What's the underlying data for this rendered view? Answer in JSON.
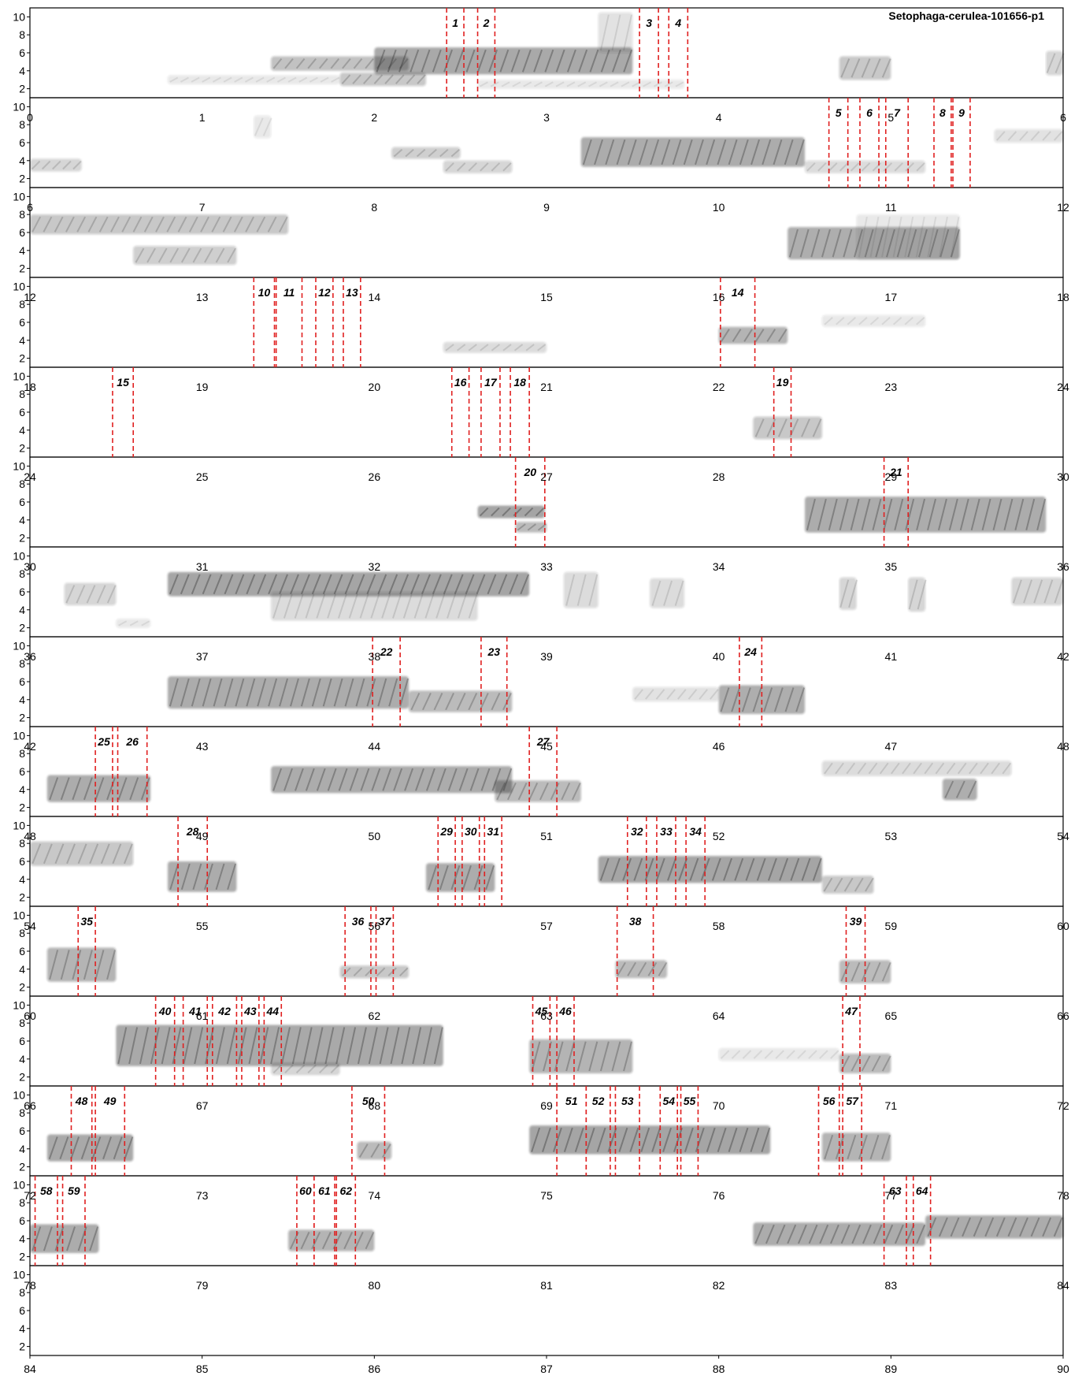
{
  "chart_data": {
    "type": "spectrogram",
    "title": "Setophaga-cerulea-101656-p1",
    "rows": 15,
    "seconds_per_row": 6,
    "x_range": [
      0,
      90
    ],
    "y_range": [
      1,
      11
    ],
    "yticks": [
      2,
      4,
      6,
      8,
      10
    ],
    "colors": {
      "ink": "#222222",
      "segment": "#e02020",
      "frame": "#000000"
    },
    "segments": [
      {
        "label": "1",
        "start": 2.42,
        "end": 2.52
      },
      {
        "label": "2",
        "start": 2.6,
        "end": 2.7
      },
      {
        "label": "3",
        "start": 3.54,
        "end": 3.65
      },
      {
        "label": "4",
        "start": 3.71,
        "end": 3.82
      },
      {
        "label": "5",
        "start": 10.64,
        "end": 10.75
      },
      {
        "label": "6",
        "start": 10.82,
        "end": 10.93
      },
      {
        "label": "7",
        "start": 10.97,
        "end": 11.1
      },
      {
        "label": "8",
        "start": 11.25,
        "end": 11.35
      },
      {
        "label": "9",
        "start": 11.36,
        "end": 11.46
      },
      {
        "label": "10",
        "start": 19.3,
        "end": 19.42
      },
      {
        "label": "11",
        "start": 19.43,
        "end": 19.58
      },
      {
        "label": "12",
        "start": 19.66,
        "end": 19.76
      },
      {
        "label": "13",
        "start": 19.82,
        "end": 19.92
      },
      {
        "label": "14",
        "start": 22.01,
        "end": 22.21
      },
      {
        "label": "15",
        "start": 24.48,
        "end": 24.6
      },
      {
        "label": "16",
        "start": 26.45,
        "end": 26.55
      },
      {
        "label": "17",
        "start": 26.62,
        "end": 26.73
      },
      {
        "label": "18",
        "start": 26.79,
        "end": 26.9
      },
      {
        "label": "19",
        "start": 28.32,
        "end": 28.42
      },
      {
        "label": "20",
        "start": 32.82,
        "end": 32.99
      },
      {
        "label": "21",
        "start": 34.96,
        "end": 35.1
      },
      {
        "label": "22",
        "start": 43.99,
        "end": 44.15
      },
      {
        "label": "23",
        "start": 44.62,
        "end": 44.77
      },
      {
        "label": "24",
        "start": 46.12,
        "end": 46.25
      },
      {
        "label": "25",
        "start": 48.38,
        "end": 48.48
      },
      {
        "label": "26",
        "start": 48.51,
        "end": 48.68
      },
      {
        "label": "27",
        "start": 50.9,
        "end": 51.06
      },
      {
        "label": "28",
        "start": 54.86,
        "end": 55.03
      },
      {
        "label": "29",
        "start": 56.37,
        "end": 56.47
      },
      {
        "label": "30",
        "start": 56.51,
        "end": 56.61
      },
      {
        "label": "31",
        "start": 56.64,
        "end": 56.74
      },
      {
        "label": "32",
        "start": 57.47,
        "end": 57.58
      },
      {
        "label": "33",
        "start": 57.64,
        "end": 57.75
      },
      {
        "label": "34",
        "start": 57.81,
        "end": 57.92
      },
      {
        "label": "35",
        "start": 60.28,
        "end": 60.38
      },
      {
        "label": "36",
        "start": 61.83,
        "end": 61.98
      },
      {
        "label": "37",
        "start": 62.01,
        "end": 62.11
      },
      {
        "label": "38",
        "start": 63.41,
        "end": 63.62
      },
      {
        "label": "39",
        "start": 64.74,
        "end": 64.85
      },
      {
        "label": "40",
        "start": 66.73,
        "end": 66.84
      },
      {
        "label": "41",
        "start": 66.89,
        "end": 67.03
      },
      {
        "label": "42",
        "start": 67.06,
        "end": 67.2
      },
      {
        "label": "43",
        "start": 67.23,
        "end": 67.33
      },
      {
        "label": "44",
        "start": 67.36,
        "end": 67.46
      },
      {
        "label": "45",
        "start": 68.92,
        "end": 69.02
      },
      {
        "label": "46",
        "start": 69.06,
        "end": 69.16
      },
      {
        "label": "47",
        "start": 70.72,
        "end": 70.82
      },
      {
        "label": "48",
        "start": 72.24,
        "end": 72.36
      },
      {
        "label": "49",
        "start": 72.38,
        "end": 72.55
      },
      {
        "label": "50",
        "start": 73.87,
        "end": 74.06
      },
      {
        "label": "51",
        "start": 75.06,
        "end": 75.23
      },
      {
        "label": "52",
        "start": 75.23,
        "end": 75.37
      },
      {
        "label": "53",
        "start": 75.4,
        "end": 75.54
      },
      {
        "label": "54",
        "start": 75.66,
        "end": 75.76
      },
      {
        "label": "55",
        "start": 75.78,
        "end": 75.88
      },
      {
        "label": "56",
        "start": 76.58,
        "end": 76.7
      },
      {
        "label": "57",
        "start": 76.72,
        "end": 76.83
      },
      {
        "label": "58",
        "start": 78.03,
        "end": 78.16
      },
      {
        "label": "59",
        "start": 78.19,
        "end": 78.32
      },
      {
        "label": "60",
        "start": 79.55,
        "end": 79.65
      },
      {
        "label": "61",
        "start": 79.65,
        "end": 79.77
      },
      {
        "label": "62",
        "start": 79.78,
        "end": 79.89
      },
      {
        "label": "63",
        "start": 82.96,
        "end": 83.09
      },
      {
        "label": "64",
        "start": 83.13,
        "end": 83.23
      }
    ],
    "blobs": [
      {
        "start": 0.8,
        "end": 1.8,
        "fmin": 2.5,
        "fmax": 3.5,
        "d": 0.2
      },
      {
        "start": 1.4,
        "end": 2.2,
        "fmin": 4.0,
        "fmax": 5.6,
        "d": 0.5
      },
      {
        "start": 1.8,
        "end": 2.3,
        "fmin": 2.3,
        "fmax": 3.8,
        "d": 0.45
      },
      {
        "start": 2.0,
        "end": 3.5,
        "fmin": 3.6,
        "fmax": 6.6,
        "d": 0.72
      },
      {
        "start": 3.3,
        "end": 3.5,
        "fmin": 6.0,
        "fmax": 10.5,
        "d": 0.25
      },
      {
        "start": 2.6,
        "end": 3.8,
        "fmin": 2.0,
        "fmax": 3.0,
        "d": 0.2
      },
      {
        "start": 4.7,
        "end": 5.0,
        "fmin": 3.0,
        "fmax": 5.6,
        "d": 0.45
      },
      {
        "start": 5.9,
        "end": 6.0,
        "fmin": 3.5,
        "fmax": 6.2,
        "d": 0.35
      },
      {
        "start": 6.0,
        "end": 6.3,
        "fmin": 2.8,
        "fmax": 4.2,
        "d": 0.35
      },
      {
        "start": 7.3,
        "end": 7.4,
        "fmin": 6.5,
        "fmax": 9.0,
        "d": 0.2
      },
      {
        "start": 8.1,
        "end": 8.5,
        "fmin": 4.2,
        "fmax": 5.5,
        "d": 0.4
      },
      {
        "start": 8.4,
        "end": 8.8,
        "fmin": 2.6,
        "fmax": 4.0,
        "d": 0.35
      },
      {
        "start": 9.2,
        "end": 10.5,
        "fmin": 3.3,
        "fmax": 6.6,
        "d": 0.7
      },
      {
        "start": 10.5,
        "end": 11.2,
        "fmin": 2.6,
        "fmax": 4.0,
        "d": 0.3
      },
      {
        "start": 11.6,
        "end": 12.0,
        "fmin": 6.0,
        "fmax": 7.5,
        "d": 0.25
      },
      {
        "start": 12.0,
        "end": 13.5,
        "fmin": 5.8,
        "fmax": 8.0,
        "d": 0.45
      },
      {
        "start": 12.6,
        "end": 13.2,
        "fmin": 2.4,
        "fmax": 4.5,
        "d": 0.4
      },
      {
        "start": 16.4,
        "end": 17.4,
        "fmin": 3.0,
        "fmax": 6.6,
        "d": 0.65
      },
      {
        "start": 16.8,
        "end": 17.4,
        "fmin": 3.0,
        "fmax": 8.0,
        "d": 0.2
      },
      {
        "start": 20.4,
        "end": 21.0,
        "fmin": 2.6,
        "fmax": 3.8,
        "d": 0.3
      },
      {
        "start": 22.0,
        "end": 22.4,
        "fmin": 3.6,
        "fmax": 5.5,
        "d": 0.6
      },
      {
        "start": 22.6,
        "end": 23.2,
        "fmin": 5.5,
        "fmax": 6.8,
        "d": 0.2
      },
      {
        "start": 28.2,
        "end": 28.6,
        "fmin": 3.0,
        "fmax": 5.5,
        "d": 0.45
      },
      {
        "start": 32.6,
        "end": 32.99,
        "fmin": 4.2,
        "fmax": 5.6,
        "d": 0.75
      },
      {
        "start": 32.82,
        "end": 33.0,
        "fmin": 2.6,
        "fmax": 3.8,
        "d": 0.55
      },
      {
        "start": 34.5,
        "end": 35.9,
        "fmin": 2.6,
        "fmax": 6.6,
        "d": 0.7
      },
      {
        "start": 36.2,
        "end": 36.5,
        "fmin": 4.5,
        "fmax": 7.0,
        "d": 0.35
      },
      {
        "start": 36.5,
        "end": 36.7,
        "fmin": 2.0,
        "fmax": 3.0,
        "d": 0.2
      },
      {
        "start": 36.8,
        "end": 38.9,
        "fmin": 5.5,
        "fmax": 8.2,
        "d": 0.75
      },
      {
        "start": 37.4,
        "end": 38.6,
        "fmin": 2.8,
        "fmax": 6.0,
        "d": 0.3
      },
      {
        "start": 39.1,
        "end": 39.3,
        "fmin": 4.2,
        "fmax": 8.2,
        "d": 0.3
      },
      {
        "start": 39.6,
        "end": 39.8,
        "fmin": 4.2,
        "fmax": 7.5,
        "d": 0.3
      },
      {
        "start": 40.7,
        "end": 40.8,
        "fmin": 4.0,
        "fmax": 7.6,
        "d": 0.35
      },
      {
        "start": 41.1,
        "end": 41.2,
        "fmin": 3.8,
        "fmax": 7.6,
        "d": 0.35
      },
      {
        "start": 41.7,
        "end": 42.0,
        "fmin": 4.5,
        "fmax": 7.6,
        "d": 0.35
      },
      {
        "start": 42.8,
        "end": 44.2,
        "fmin": 3.0,
        "fmax": 6.6,
        "d": 0.7
      },
      {
        "start": 44.2,
        "end": 44.8,
        "fmin": 2.6,
        "fmax": 5.0,
        "d": 0.55
      },
      {
        "start": 45.5,
        "end": 46.0,
        "fmin": 3.8,
        "fmax": 5.4,
        "d": 0.25
      },
      {
        "start": 46.0,
        "end": 46.5,
        "fmin": 2.4,
        "fmax": 5.6,
        "d": 0.65
      },
      {
        "start": 48.1,
        "end": 48.7,
        "fmin": 2.6,
        "fmax": 5.6,
        "d": 0.7
      },
      {
        "start": 49.4,
        "end": 50.8,
        "fmin": 3.6,
        "fmax": 6.6,
        "d": 0.7
      },
      {
        "start": 50.7,
        "end": 51.2,
        "fmin": 2.6,
        "fmax": 5.0,
        "d": 0.55
      },
      {
        "start": 52.6,
        "end": 53.7,
        "fmin": 5.5,
        "fmax": 7.2,
        "d": 0.3
      },
      {
        "start": 53.3,
        "end": 53.5,
        "fmin": 2.8,
        "fmax": 5.2,
        "d": 0.65
      },
      {
        "start": 54.0,
        "end": 54.6,
        "fmin": 5.5,
        "fmax": 8.2,
        "d": 0.45
      },
      {
        "start": 54.8,
        "end": 55.2,
        "fmin": 2.6,
        "fmax": 6.0,
        "d": 0.7
      },
      {
        "start": 56.3,
        "end": 56.7,
        "fmin": 2.6,
        "fmax": 5.8,
        "d": 0.7
      },
      {
        "start": 57.3,
        "end": 58.6,
        "fmin": 3.6,
        "fmax": 6.6,
        "d": 0.75
      },
      {
        "start": 58.6,
        "end": 58.9,
        "fmin": 2.4,
        "fmax": 4.4,
        "d": 0.45
      },
      {
        "start": 60.1,
        "end": 60.5,
        "fmin": 2.6,
        "fmax": 6.4,
        "d": 0.6
      },
      {
        "start": 61.8,
        "end": 62.2,
        "fmin": 3.0,
        "fmax": 4.4,
        "d": 0.45
      },
      {
        "start": 63.4,
        "end": 63.7,
        "fmin": 3.0,
        "fmax": 5.0,
        "d": 0.55
      },
      {
        "start": 64.7,
        "end": 65.0,
        "fmin": 2.4,
        "fmax": 5.0,
        "d": 0.55
      },
      {
        "start": 66.5,
        "end": 68.4,
        "fmin": 3.2,
        "fmax": 7.8,
        "d": 0.72
      },
      {
        "start": 67.4,
        "end": 67.8,
        "fmin": 2.2,
        "fmax": 3.6,
        "d": 0.35
      },
      {
        "start": 68.9,
        "end": 69.5,
        "fmin": 2.4,
        "fmax": 6.2,
        "d": 0.6
      },
      {
        "start": 70.0,
        "end": 70.7,
        "fmin": 3.8,
        "fmax": 5.2,
        "d": 0.2
      },
      {
        "start": 70.7,
        "end": 71.0,
        "fmin": 2.4,
        "fmax": 4.6,
        "d": 0.55
      },
      {
        "start": 72.1,
        "end": 72.6,
        "fmin": 2.6,
        "fmax": 5.6,
        "d": 0.72
      },
      {
        "start": 73.9,
        "end": 74.1,
        "fmin": 2.8,
        "fmax": 4.8,
        "d": 0.55
      },
      {
        "start": 74.9,
        "end": 76.3,
        "fmin": 3.4,
        "fmax": 6.6,
        "d": 0.75
      },
      {
        "start": 76.6,
        "end": 77.0,
        "fmin": 2.6,
        "fmax": 5.8,
        "d": 0.6
      },
      {
        "start": 78.0,
        "end": 78.4,
        "fmin": 2.4,
        "fmax": 5.6,
        "d": 0.7
      },
      {
        "start": 79.5,
        "end": 80.0,
        "fmin": 2.6,
        "fmax": 5.0,
        "d": 0.6
      },
      {
        "start": 82.2,
        "end": 83.2,
        "fmin": 3.2,
        "fmax": 5.8,
        "d": 0.7
      },
      {
        "start": 83.2,
        "end": 84.0,
        "fmin": 4.0,
        "fmax": 6.6,
        "d": 0.7
      }
    ]
  }
}
